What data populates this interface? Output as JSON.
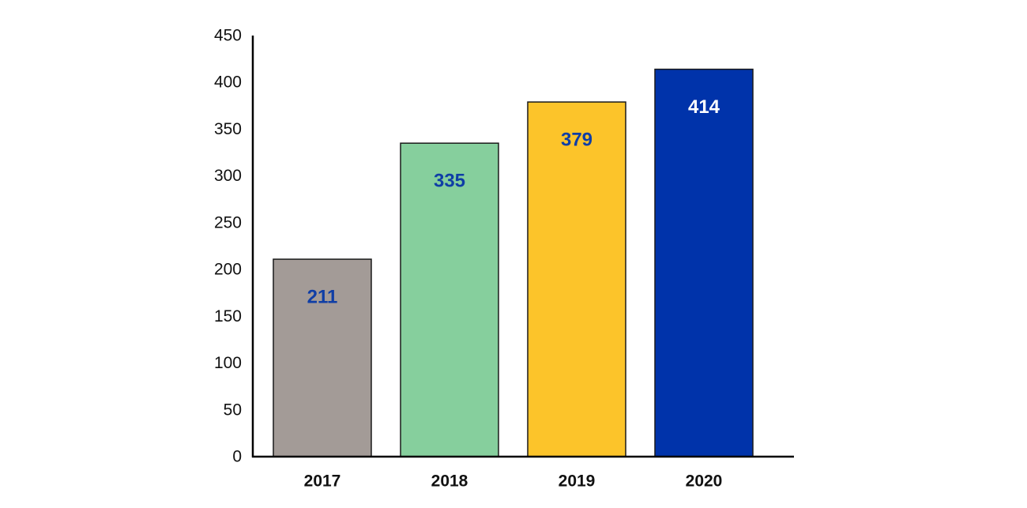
{
  "chart_data": {
    "type": "bar",
    "categories": [
      "2017",
      "2018",
      "2019",
      "2020"
    ],
    "values": [
      211,
      335,
      379,
      414
    ],
    "data_labels": [
      "211",
      "335",
      "379",
      "414"
    ],
    "bar_colors": [
      "#a39b97",
      "#86cf9d",
      "#fcc42a",
      "#0033aa"
    ],
    "label_colors": [
      "#0f3ea6",
      "#0f3ea6",
      "#0f3ea6",
      "#ffffff"
    ],
    "yticks": [
      0,
      50,
      100,
      150,
      200,
      250,
      300,
      350,
      400,
      450
    ],
    "ylim": [
      0,
      450
    ],
    "title": "",
    "xlabel": "",
    "ylabel": "",
    "grid": false,
    "legend": "none"
  }
}
